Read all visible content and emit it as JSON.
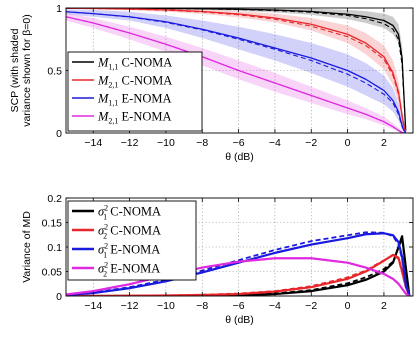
{
  "chart_data": [
    {
      "type": "line",
      "ylabel": "SCP (with shaded variance shown for β=0)",
      "ylabel_lines": [
        "SCP (with shaded",
        "variance shown for β=0)"
      ],
      "xlabel": "θ (dB)",
      "xlim": [
        -15.5,
        3.6
      ],
      "ylim": [
        0,
        1
      ],
      "xticks": [
        "−14",
        "−12",
        "−10",
        "−8",
        "−6",
        "−4",
        "−2",
        "0",
        "2"
      ],
      "xtick_values": [
        -14,
        -12,
        -10,
        -8,
        -6,
        -4,
        -2,
        0,
        2
      ],
      "yticks": [
        "0",
        "0.5",
        "1"
      ],
      "ytick_values": [
        0,
        0.5,
        1
      ],
      "grid": true,
      "legend_position": "lower-left",
      "x": [
        -15.5,
        -14,
        -12,
        -10,
        -8,
        -6,
        -4,
        -2,
        0,
        1,
        2,
        2.5,
        2.8,
        3.0,
        3.1,
        3.2
      ],
      "series": [
        {
          "name": "M1,1 C-NOMA",
          "legend_symbol": "M",
          "legend_sub": "1,1",
          "legend_label": " C-NOMA",
          "color": "#000000",
          "values": [
            0.998,
            0.998,
            0.997,
            0.996,
            0.994,
            0.99,
            0.984,
            0.972,
            0.95,
            0.93,
            0.9,
            0.86,
            0.79,
            0.6,
            0.3,
            0.02
          ],
          "dashed": [
            0.998,
            0.998,
            0.997,
            0.995,
            0.993,
            0.988,
            0.98,
            0.966,
            0.94,
            0.915,
            0.875,
            0.83,
            0.75,
            0.55,
            0.28,
            0.02
          ],
          "band_upper": [
            1.0,
            1.0,
            1.0,
            1.0,
            1.0,
            1.0,
            0.999,
            0.995,
            0.985,
            0.975,
            0.955,
            0.93,
            0.87,
            0.7,
            0.38,
            0.03
          ],
          "band_lower": [
            0.996,
            0.995,
            0.993,
            0.99,
            0.986,
            0.978,
            0.965,
            0.945,
            0.91,
            0.88,
            0.84,
            0.79,
            0.72,
            0.52,
            0.24,
            0.01
          ]
        },
        {
          "name": "M2,1 C-NOMA",
          "legend_symbol": "M",
          "legend_sub": "2,1",
          "legend_label": " C-NOMA",
          "color": "#e8262a",
          "values": [
            0.998,
            0.996,
            0.992,
            0.985,
            0.972,
            0.952,
            0.92,
            0.87,
            0.79,
            0.72,
            0.61,
            0.48,
            0.33,
            0.14,
            0.06,
            0.01
          ],
          "dashed": [
            0.998,
            0.996,
            0.991,
            0.983,
            0.968,
            0.946,
            0.91,
            0.855,
            0.77,
            0.7,
            0.59,
            0.46,
            0.31,
            0.13,
            0.05,
            0.01
          ],
          "band_upper": [
            1.0,
            0.999,
            0.998,
            0.994,
            0.988,
            0.976,
            0.955,
            0.92,
            0.86,
            0.8,
            0.7,
            0.58,
            0.42,
            0.2,
            0.09,
            0.02
          ],
          "band_lower": [
            0.994,
            0.99,
            0.982,
            0.97,
            0.952,
            0.925,
            0.885,
            0.82,
            0.72,
            0.63,
            0.51,
            0.38,
            0.25,
            0.09,
            0.03,
            0.0
          ]
        },
        {
          "name": "M1,1 E-NOMA",
          "legend_symbol": "M",
          "legend_sub": "1,1",
          "legend_label": " E-NOMA",
          "color": "#1a1adf",
          "values": [
            0.97,
            0.955,
            0.93,
            0.89,
            0.83,
            0.76,
            0.68,
            0.6,
            0.5,
            0.43,
            0.34,
            0.26,
            0.17,
            0.06,
            0.02,
            0.0
          ],
          "dashed": [
            0.97,
            0.955,
            0.928,
            0.885,
            0.825,
            0.75,
            0.67,
            0.58,
            0.47,
            0.4,
            0.31,
            0.24,
            0.15,
            0.05,
            0.02,
            0.0
          ],
          "band_upper": [
            0.99,
            0.985,
            0.97,
            0.94,
            0.9,
            0.85,
            0.79,
            0.72,
            0.63,
            0.56,
            0.46,
            0.36,
            0.24,
            0.1,
            0.04,
            0.0
          ],
          "band_lower": [
            0.95,
            0.93,
            0.9,
            0.84,
            0.76,
            0.67,
            0.58,
            0.48,
            0.37,
            0.3,
            0.23,
            0.17,
            0.1,
            0.03,
            0.01,
            0.0
          ]
        },
        {
          "name": "M2,1 E-NOMA",
          "legend_symbol": "M",
          "legend_sub": "2,1",
          "legend_label": " E-NOMA",
          "color": "#e02ae0",
          "values": [
            0.93,
            0.88,
            0.8,
            0.71,
            0.61,
            0.5,
            0.4,
            0.3,
            0.2,
            0.15,
            0.09,
            0.05,
            0.02,
            0.005,
            0.0,
            0.0
          ],
          "dashed": [
            0.93,
            0.88,
            0.8,
            0.71,
            0.61,
            0.5,
            0.4,
            0.3,
            0.2,
            0.15,
            0.09,
            0.05,
            0.02,
            0.005,
            0.0,
            0.0
          ],
          "band_upper": [
            0.96,
            0.92,
            0.85,
            0.77,
            0.68,
            0.58,
            0.48,
            0.37,
            0.26,
            0.2,
            0.13,
            0.08,
            0.04,
            0.01,
            0.0,
            0.0
          ],
          "band_lower": [
            0.9,
            0.84,
            0.75,
            0.65,
            0.54,
            0.43,
            0.33,
            0.24,
            0.15,
            0.11,
            0.06,
            0.03,
            0.01,
            0.0,
            0.0,
            0.0
          ]
        }
      ]
    },
    {
      "type": "line",
      "ylabel": "Variance of MD",
      "xlabel": "θ (dB)",
      "xlim": [
        -15.5,
        3.6
      ],
      "ylim": [
        0,
        0.2
      ],
      "xticks": [
        "−14",
        "−12",
        "−10",
        "−8",
        "−6",
        "−4",
        "−2",
        "0",
        "2"
      ],
      "xtick_values": [
        -14,
        -12,
        -10,
        -8,
        -6,
        -4,
        -2,
        0,
        2
      ],
      "yticks": [
        "0",
        "0.05",
        "0.1",
        "0.15",
        "0.2"
      ],
      "ytick_values": [
        0,
        0.05,
        0.1,
        0.15,
        0.2
      ],
      "grid": true,
      "legend_position": "top-left",
      "x": [
        -15.5,
        -14,
        -12,
        -10,
        -8,
        -6,
        -4,
        -2,
        0,
        1,
        2,
        2.5,
        2.8,
        3.0,
        3.2,
        3.4
      ],
      "series": [
        {
          "name": "σ1² C-NOMA",
          "legend_symbol": "σ",
          "legend_sub": "1",
          "legend_sup": "2",
          "legend_label": " C-NOMA",
          "color": "#000000",
          "values": [
            0.0,
            0.0,
            0.0,
            0.0,
            0.0005,
            0.0015,
            0.004,
            0.01,
            0.022,
            0.033,
            0.05,
            0.068,
            0.1,
            0.122,
            0.06,
            0.0
          ],
          "dashed": [
            0.0,
            0.0,
            0.0,
            0.0,
            0.0008,
            0.002,
            0.005,
            0.012,
            0.026,
            0.038,
            0.055,
            0.07,
            0.098,
            0.118,
            0.055,
            0.0
          ]
        },
        {
          "name": "σ2² C-NOMA",
          "legend_symbol": "σ",
          "legend_sub": "2",
          "legend_sup": "2",
          "legend_label": " C-NOMA",
          "color": "#e8262a",
          "values": [
            0.0,
            0.0,
            0.0005,
            0.001,
            0.002,
            0.004,
            0.009,
            0.018,
            0.035,
            0.05,
            0.072,
            0.084,
            0.078,
            0.05,
            0.02,
            0.0
          ],
          "dashed": [
            0.0,
            0.0,
            0.0005,
            0.001,
            0.0025,
            0.005,
            0.01,
            0.02,
            0.038,
            0.052,
            0.073,
            0.083,
            0.076,
            0.048,
            0.018,
            0.0
          ]
        },
        {
          "name": "σ1² E-NOMA",
          "legend_symbol": "σ",
          "legend_sub": "1",
          "legend_sup": "2",
          "legend_label": " E-NOMA",
          "color": "#1a1adf",
          "values": [
            0.002,
            0.006,
            0.016,
            0.03,
            0.048,
            0.068,
            0.088,
            0.105,
            0.118,
            0.126,
            0.128,
            0.124,
            0.11,
            0.08,
            0.025,
            0.0
          ],
          "dashed": [
            0.002,
            0.007,
            0.018,
            0.033,
            0.052,
            0.073,
            0.094,
            0.112,
            0.124,
            0.13,
            0.129,
            0.122,
            0.105,
            0.075,
            0.02,
            0.0
          ]
        },
        {
          "name": "σ2² E-NOMA",
          "legend_symbol": "σ",
          "legend_sub": "2",
          "legend_sup": "2",
          "legend_label": " E-NOMA",
          "color": "#e02ae0",
          "values": [
            0.003,
            0.01,
            0.024,
            0.042,
            0.058,
            0.07,
            0.077,
            0.077,
            0.068,
            0.058,
            0.045,
            0.035,
            0.025,
            0.015,
            0.005,
            0.0
          ],
          "dashed": [
            0.003,
            0.01,
            0.024,
            0.042,
            0.058,
            0.07,
            0.077,
            0.077,
            0.068,
            0.058,
            0.045,
            0.035,
            0.025,
            0.015,
            0.005,
            0.0
          ]
        }
      ]
    }
  ]
}
